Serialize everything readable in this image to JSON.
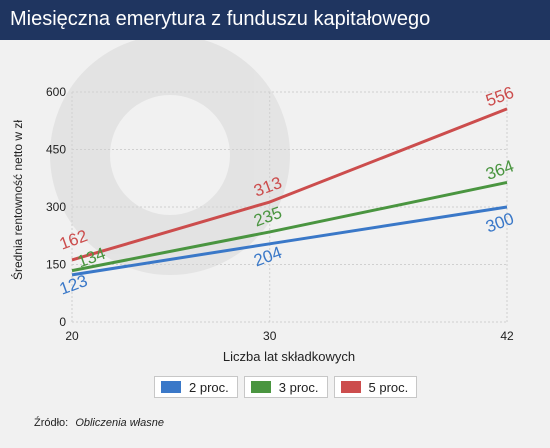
{
  "header": {
    "title": "Miesięczna emerytura z funduszu kapitałowego"
  },
  "chart_data": {
    "type": "line",
    "x": [
      20,
      30,
      42
    ],
    "series": [
      {
        "name": "2 proc.",
        "values": [
          123,
          204,
          300
        ],
        "color": "#3a78c8"
      },
      {
        "name": "3 proc.",
        "values": [
          134,
          235,
          364
        ],
        "color": "#4a9540"
      },
      {
        "name": "5 proc.",
        "values": [
          162,
          313,
          556
        ],
        "color": "#cc4d4d"
      }
    ],
    "xlabel": "Liczba lat składkowych",
    "ylabel": "Średnia rentowność netto w zł",
    "xlim": [
      20,
      42
    ],
    "ylim": [
      0,
      600
    ],
    "x_ticks": [
      "20",
      "30",
      "42"
    ],
    "y_ticks": [
      "0",
      "150",
      "300",
      "450",
      "600"
    ],
    "grid": true,
    "legend_position": "bottom"
  },
  "source": {
    "label": "Źródło:",
    "value": "Obliczenia własne"
  }
}
